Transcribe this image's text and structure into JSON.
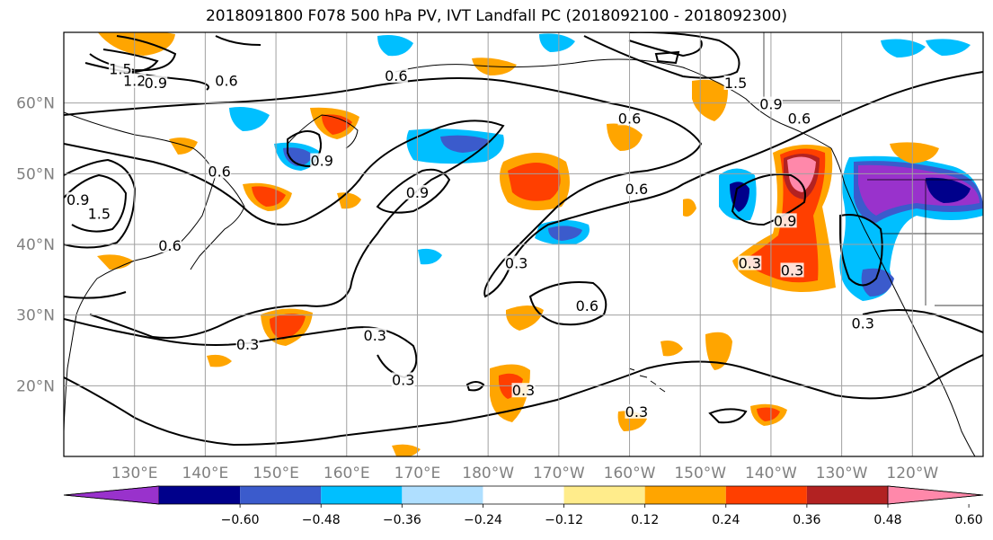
{
  "title": "2018091800 F078 500 hPa PV, IVT Landfall PC (2018092100 - 2018092300)",
  "map": {
    "lon_range": [
      120,
      250
    ],
    "lat_range": [
      10,
      70
    ],
    "lon_ticks": [
      {
        "lon": 130,
        "label": "130°E"
      },
      {
        "lon": 140,
        "label": "140°E"
      },
      {
        "lon": 150,
        "label": "150°E"
      },
      {
        "lon": 160,
        "label": "160°E"
      },
      {
        "lon": 170,
        "label": "170°E"
      },
      {
        "lon": 180,
        "label": "180°W"
      },
      {
        "lon": 190,
        "label": "170°W"
      },
      {
        "lon": 200,
        "label": "160°W"
      },
      {
        "lon": 210,
        "label": "150°W"
      },
      {
        "lon": 220,
        "label": "140°W"
      },
      {
        "lon": 230,
        "label": "130°W"
      },
      {
        "lon": 240,
        "label": "120°W"
      }
    ],
    "lat_ticks": [
      {
        "lat": 20,
        "label": "20°N"
      },
      {
        "lat": 30,
        "label": "30°N"
      },
      {
        "lat": 40,
        "label": "40°N"
      },
      {
        "lat": 50,
        "label": "50°N"
      },
      {
        "lat": 60,
        "label": "60°N"
      }
    ],
    "grid": true,
    "contour_labels": [
      {
        "lon": 128,
        "lat": 64.5,
        "text": "1.5"
      },
      {
        "lon": 130,
        "lat": 62.8,
        "text": "1.2"
      },
      {
        "lon": 133,
        "lat": 62.5,
        "text": "0.9"
      },
      {
        "lon": 143,
        "lat": 62.8,
        "text": "0.6"
      },
      {
        "lon": 167,
        "lat": 63.5,
        "text": "0.6"
      },
      {
        "lon": 200,
        "lat": 57.5,
        "text": "0.6"
      },
      {
        "lon": 215,
        "lat": 62.5,
        "text": "1.5"
      },
      {
        "lon": 220,
        "lat": 59.5,
        "text": "0.9"
      },
      {
        "lon": 224,
        "lat": 57.5,
        "text": "0.6"
      },
      {
        "lon": 156.5,
        "lat": 51.5,
        "text": "0.9"
      },
      {
        "lon": 142,
        "lat": 50,
        "text": "0.6"
      },
      {
        "lon": 122,
        "lat": 46,
        "text": "0.9"
      },
      {
        "lon": 125,
        "lat": 44,
        "text": "1.5"
      },
      {
        "lon": 170,
        "lat": 47,
        "text": "0.9"
      },
      {
        "lon": 135,
        "lat": 39.5,
        "text": "0.6"
      },
      {
        "lon": 201,
        "lat": 47.5,
        "text": "0.6"
      },
      {
        "lon": 222,
        "lat": 43,
        "text": "0.9"
      },
      {
        "lon": 217,
        "lat": 37,
        "text": "0.3"
      },
      {
        "lon": 223,
        "lat": 36,
        "text": "0.3"
      },
      {
        "lon": 184,
        "lat": 37,
        "text": "0.3"
      },
      {
        "lon": 194,
        "lat": 31,
        "text": "0.6"
      },
      {
        "lon": 146,
        "lat": 25.5,
        "text": "0.3"
      },
      {
        "lon": 164,
        "lat": 26.8,
        "text": "0.3"
      },
      {
        "lon": 168,
        "lat": 20.5,
        "text": "0.3"
      },
      {
        "lon": 185,
        "lat": 19,
        "text": "0.3"
      },
      {
        "lon": 201,
        "lat": 16,
        "text": "0.3"
      },
      {
        "lon": 233,
        "lat": 28.5,
        "text": "0.3"
      }
    ]
  },
  "colorbar": {
    "colors": [
      "#9932cc",
      "#00008b",
      "#3b5bcc",
      "#00bfff",
      "#afdfff",
      "#ffffff",
      "#ffec8b",
      "#ffa500",
      "#ff3f00",
      "#b22222",
      "#ff88aa"
    ],
    "tick_labels": [
      "−0.60",
      "−0.48",
      "−0.36",
      "−0.24",
      "−0.12",
      "0.12",
      "0.24",
      "0.36",
      "0.48",
      "0.60"
    ]
  }
}
